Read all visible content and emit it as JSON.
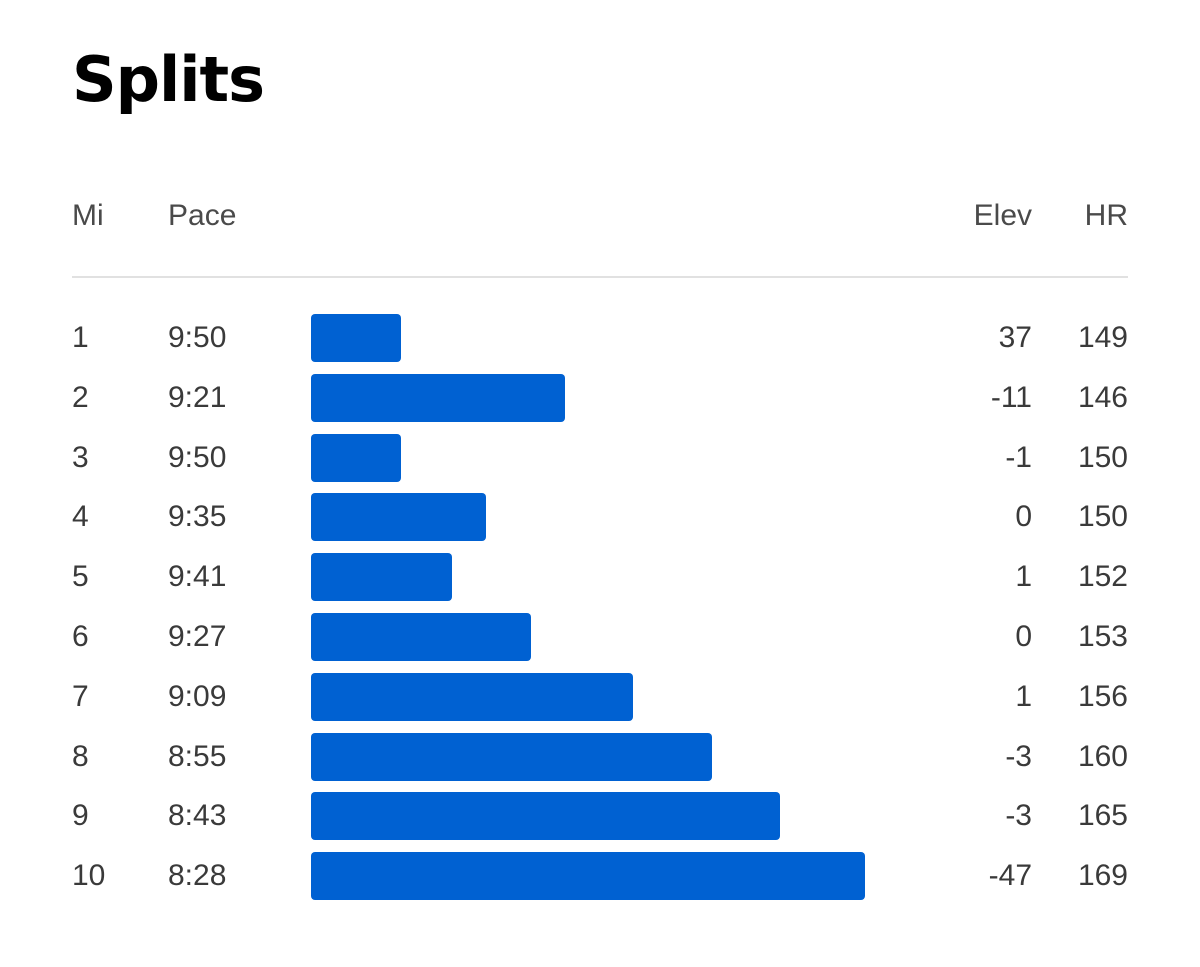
{
  "title": "Splits",
  "headers": {
    "mi": "Mi",
    "pace": "Pace",
    "elev": "Elev",
    "hr": "HR"
  },
  "colors": {
    "bar": "#0061d2"
  },
  "splits": [
    {
      "mi": "1",
      "pace": "9:50",
      "elev": "37",
      "hr": "149"
    },
    {
      "mi": "2",
      "pace": "9:21",
      "elev": "-11",
      "hr": "146"
    },
    {
      "mi": "3",
      "pace": "9:50",
      "elev": "-1",
      "hr": "150"
    },
    {
      "mi": "4",
      "pace": "9:35",
      "elev": "0",
      "hr": "150"
    },
    {
      "mi": "5",
      "pace": "9:41",
      "elev": "1",
      "hr": "152"
    },
    {
      "mi": "6",
      "pace": "9:27",
      "elev": "0",
      "hr": "153"
    },
    {
      "mi": "7",
      "pace": "9:09",
      "elev": "1",
      "hr": "156"
    },
    {
      "mi": "8",
      "pace": "8:55",
      "elev": "-3",
      "hr": "160"
    },
    {
      "mi": "9",
      "pace": "8:43",
      "elev": "-3",
      "hr": "165"
    },
    {
      "mi": "10",
      "pace": "8:28",
      "elev": "-47",
      "hr": "169"
    }
  ]
}
